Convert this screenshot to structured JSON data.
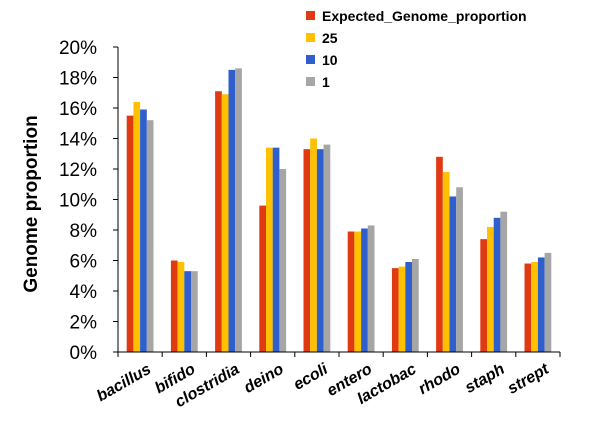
{
  "chart_data": {
    "type": "bar",
    "ylabel": "Genome proportion",
    "xlabel": "",
    "ylim": [
      0,
      20
    ],
    "yticks": [
      "0%",
      "2%",
      "4%",
      "6%",
      "8%",
      "10%",
      "12%",
      "14%",
      "16%",
      "18%",
      "20%"
    ],
    "categories": [
      "bacillus",
      "bifido",
      "clostridia",
      "deino",
      "ecoli",
      "entero",
      "lactobac",
      "rhodo",
      "staph",
      "strept"
    ],
    "legend_position": "top-right",
    "grid": false,
    "series": [
      {
        "name": "Expected_Genome_proportion",
        "color": "#E03A12",
        "values": [
          15.5,
          6.0,
          17.1,
          9.6,
          13.3,
          7.9,
          5.5,
          12.8,
          7.4,
          5.8
        ]
      },
      {
        "name": "25",
        "color": "#FFC000",
        "values": [
          16.4,
          5.9,
          16.9,
          13.4,
          14.0,
          7.9,
          5.6,
          11.8,
          8.2,
          5.9
        ]
      },
      {
        "name": "10",
        "color": "#2E5FCC",
        "values": [
          15.9,
          5.3,
          18.5,
          13.4,
          13.3,
          8.1,
          5.9,
          10.2,
          8.8,
          6.2
        ]
      },
      {
        "name": "1",
        "color": "#A6A6A6",
        "values": [
          15.2,
          5.3,
          18.6,
          12.0,
          13.6,
          8.3,
          6.1,
          10.8,
          9.2,
          6.5
        ]
      }
    ]
  }
}
